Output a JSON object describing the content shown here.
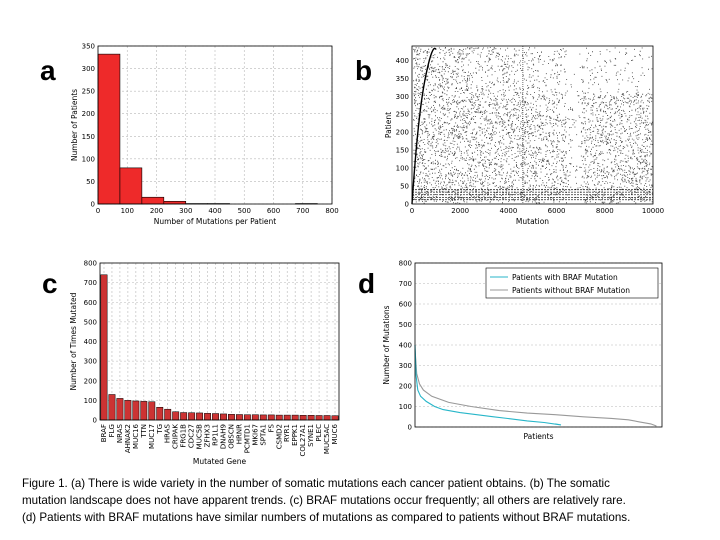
{
  "panels": {
    "a": "a",
    "b": "b",
    "c": "c",
    "d": "d"
  },
  "caption": {
    "line1": "Figure 1. (a) There is wide variety in the number of somatic mutations each cancer patient obtains. (b) The somatic",
    "line2": "mutation landscape does not have apparent trends. (c) BRAF mutations occur frequently; all others are relatively rare.",
    "line3": "(d) Patients with BRAF mutations have similar numbers of mutations as compared to patients without BRAF mutations."
  },
  "colors": {
    "bar": "#ee2a2a",
    "bar_c": "#cc3333",
    "braf_line": "#27b6c9",
    "nonbraf_line": "#999999"
  },
  "chart_data": [
    {
      "panel": "a",
      "type": "bar",
      "xlabel": "Number of Mutations per Patient",
      "ylabel": "Number of Patients",
      "xlim": [
        0,
        800
      ],
      "ylim": [
        0,
        350
      ],
      "xticks": [
        0,
        100,
        200,
        300,
        400,
        500,
        600,
        700,
        800
      ],
      "yticks": [
        0,
        50,
        100,
        150,
        200,
        250,
        300,
        350
      ],
      "grid": true,
      "bins": [
        {
          "x0": 0,
          "x1": 75,
          "value": 332
        },
        {
          "x0": 75,
          "x1": 150,
          "value": 80
        },
        {
          "x0": 150,
          "x1": 225,
          "value": 15
        },
        {
          "x0": 225,
          "x1": 300,
          "value": 6
        },
        {
          "x0": 300,
          "x1": 375,
          "value": 1
        },
        {
          "x0": 375,
          "x1": 450,
          "value": 1
        },
        {
          "x0": 450,
          "x1": 525,
          "value": 0
        },
        {
          "x0": 525,
          "x1": 600,
          "value": 0
        },
        {
          "x0": 600,
          "x1": 675,
          "value": 0
        },
        {
          "x0": 675,
          "x1": 750,
          "value": 1
        }
      ]
    },
    {
      "panel": "b",
      "type": "scatter",
      "xlabel": "Mutation",
      "ylabel": "Patient",
      "xlim": [
        0,
        10000
      ],
      "ylim": [
        0,
        440
      ],
      "xticks": [
        0,
        2000,
        4000,
        6000,
        8000,
        10000
      ],
      "yticks": [
        0,
        50,
        100,
        150,
        200,
        250,
        300,
        350,
        400
      ],
      "grid": false
    },
    {
      "panel": "c",
      "type": "bar",
      "xlabel": "Mutated Gene",
      "ylabel": "Number of Times Mutated",
      "ylim": [
        0,
        800
      ],
      "yticks": [
        0,
        100,
        200,
        300,
        400,
        500,
        600,
        700,
        800
      ],
      "grid": true,
      "categories": [
        "BRAF",
        "FLG",
        "NRAS",
        "AHNAK2",
        "MUC16",
        "TTN",
        "MUC17",
        "TG",
        "HRAS",
        "CRIPAK",
        "FRG1B",
        "CDC27",
        "MUC5B",
        "ZFHX3",
        "RP1L1",
        "DNAH9",
        "OBSCN",
        "HRNR",
        "PCMTD1",
        "MKI67",
        "SPTA1",
        "FS",
        "CSMD2",
        "RYR1",
        "EPPK1",
        "COL27A1",
        "SYNE1",
        "PLEC",
        "MUC5AC",
        "MUC6"
      ],
      "values": [
        740,
        130,
        110,
        100,
        97,
        95,
        93,
        65,
        55,
        42,
        38,
        37,
        36,
        34,
        33,
        31,
        29,
        28,
        27,
        27,
        26,
        26,
        25,
        25,
        25,
        24,
        24,
        23,
        23,
        22
      ]
    },
    {
      "panel": "d",
      "type": "line",
      "xlabel": "Patients",
      "ylabel": "Number of Mutations",
      "ylim": [
        0,
        800
      ],
      "xlim": [
        0,
        440
      ],
      "yticks": [
        0,
        100,
        200,
        300,
        400,
        500,
        600,
        700,
        800
      ],
      "grid": true,
      "legend_position": "top-right",
      "series": [
        {
          "name": "Patients with BRAF Mutation",
          "x": [
            0,
            2,
            5,
            10,
            20,
            35,
            50,
            80,
            110,
            140,
            170,
            200,
            230,
            260,
            250
          ],
          "y": [
            400,
            250,
            180,
            150,
            125,
            100,
            85,
            70,
            60,
            50,
            40,
            30,
            22,
            10,
            15
          ]
        },
        {
          "name": "Patients without BRAF Mutation",
          "x": [
            0,
            3,
            8,
            15,
            30,
            60,
            100,
            150,
            200,
            250,
            300,
            350,
            380,
            400,
            420,
            430
          ],
          "y": [
            380,
            260,
            210,
            180,
            150,
            120,
            100,
            80,
            68,
            60,
            50,
            42,
            35,
            25,
            15,
            5
          ]
        }
      ]
    }
  ]
}
